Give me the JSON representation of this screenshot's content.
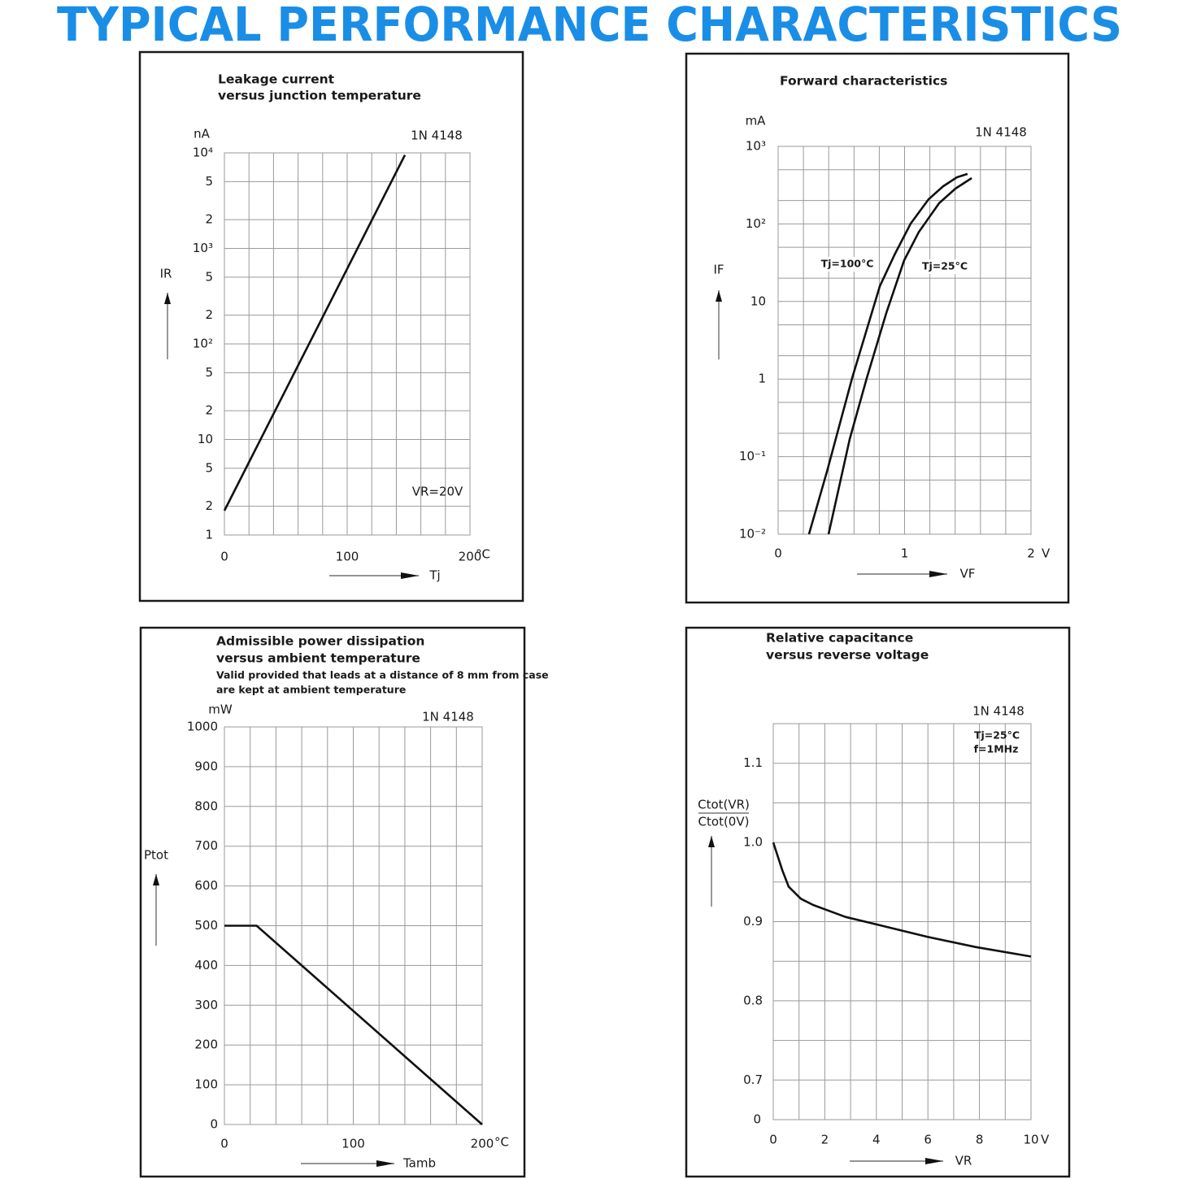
{
  "title": "TYPICAL PERFORMANCE CHARACTERISTICS",
  "chart_data": [
    {
      "type": "line",
      "title": [
        "Leakage current",
        "versus junction temperature"
      ],
      "device": "1N 4148",
      "yunit": "nA",
      "ylabel": "IR",
      "xlabel": "Tj",
      "xunit": "°C",
      "annotations": [
        "VR=20V"
      ],
      "ylog": true,
      "grid": true,
      "xlim": [
        0,
        200
      ],
      "ylim": [
        1,
        10000
      ],
      "xticks": [
        0,
        {
          "value": 20,
          "label": null
        },
        {
          "value": 40,
          "label": null
        },
        {
          "value": 60,
          "label": null
        },
        {
          "value": 80,
          "label": null
        },
        100,
        {
          "value": 120,
          "label": null
        },
        {
          "value": 140,
          "label": null
        },
        {
          "value": 160,
          "label": null
        },
        {
          "value": 180,
          "label": null
        },
        200
      ],
      "yticks": [
        1,
        2,
        5,
        10,
        {
          "value": 20,
          "label": "2"
        },
        {
          "value": 50,
          "label": "5"
        },
        {
          "value": 100,
          "label": "10²"
        },
        {
          "value": 200,
          "label": "2"
        },
        {
          "value": 500,
          "label": "5"
        },
        {
          "value": 1000,
          "label": "10³"
        },
        {
          "value": 2000,
          "label": "2"
        },
        {
          "value": 5000,
          "label": "5"
        },
        {
          "value": 10000,
          "label": "10⁴"
        }
      ],
      "series": [
        {
          "name": null,
          "color": "#111111",
          "x": [
            0,
            147
          ],
          "values": [
            1.8,
            9500
          ]
        }
      ]
    },
    {
      "type": "line",
      "title": [
        "Forward characteristics"
      ],
      "device": "1N 4148",
      "yunit": "mA",
      "ylabel": "IF",
      "xlabel": "VF",
      "xunit": "V",
      "ylog": true,
      "grid": true,
      "xlim": [
        0,
        2
      ],
      "ylim": [
        0.01,
        1000
      ],
      "xticks": [
        0,
        {
          "value": 0.2,
          "label": null
        },
        {
          "value": 0.4,
          "label": null
        },
        {
          "value": 0.6,
          "label": null
        },
        {
          "value": 0.8,
          "label": null
        },
        1,
        {
          "value": 1.2,
          "label": null
        },
        {
          "value": 1.4,
          "label": null
        },
        {
          "value": 1.6,
          "label": null
        },
        {
          "value": 1.8,
          "label": null
        },
        2
      ],
      "yticks": [
        {
          "value": 0.01,
          "label": "10⁻²"
        },
        {
          "value": 0.02,
          "label": null
        },
        {
          "value": 0.05,
          "label": null
        },
        {
          "value": 0.1,
          "label": "10⁻¹"
        },
        {
          "value": 0.2,
          "label": null
        },
        {
          "value": 0.5,
          "label": null
        },
        1,
        {
          "value": 2,
          "label": null
        },
        {
          "value": 5,
          "label": null
        },
        10,
        {
          "value": 20,
          "label": null
        },
        {
          "value": 50,
          "label": null
        },
        {
          "value": 100,
          "label": "10²"
        },
        {
          "value": 200,
          "label": null
        },
        {
          "value": 500,
          "label": null
        },
        {
          "value": 1000,
          "label": "10³"
        }
      ],
      "series": [
        {
          "name": "Tj=100°C",
          "color": "#111111",
          "x": [
            0.244,
            0.386,
            0.585,
            0.804,
            0.92,
            1.048,
            1.19,
            1.305,
            1.415,
            1.498
          ],
          "values": [
            0.01,
            0.064,
            1.03,
            15.7,
            40,
            101,
            208,
            306,
            400,
            441
          ]
        },
        {
          "name": "Tj=25°C",
          "color": "#111111",
          "x": [
            0.399,
            0.566,
            0.701,
            0.855,
            0.997,
            1.113,
            1.273,
            1.402,
            1.531
          ],
          "values": [
            0.01,
            0.168,
            1.03,
            7.1,
            34,
            79,
            185,
            285,
            390
          ]
        }
      ]
    },
    {
      "type": "line",
      "title": [
        "Admissible power dissipation",
        "versus ambient temperature"
      ],
      "notes": [
        "Valid provided that leads at a distance of 8 mm from case",
        "are kept at ambient temperature"
      ],
      "device": "1N 4148",
      "yunit": "mW",
      "ylabel": "Ptot",
      "xlabel": "Tamb",
      "xunit": "°C",
      "grid": true,
      "xlim": [
        0,
        200
      ],
      "ylim": [
        0,
        1000
      ],
      "xticks": [
        0,
        {
          "value": 20,
          "label": null
        },
        {
          "value": 40,
          "label": null
        },
        {
          "value": 60,
          "label": null
        },
        {
          "value": 80,
          "label": null
        },
        100,
        {
          "value": 120,
          "label": null
        },
        {
          "value": 140,
          "label": null
        },
        {
          "value": 160,
          "label": null
        },
        {
          "value": 180,
          "label": null
        },
        200
      ],
      "yticks": [
        0,
        100,
        200,
        300,
        400,
        500,
        600,
        700,
        800,
        900,
        1000
      ],
      "series": [
        {
          "name": null,
          "color": "#111111",
          "x": [
            0,
            25,
            200
          ],
          "values": [
            500,
            500,
            0
          ]
        }
      ]
    },
    {
      "type": "line",
      "title": [
        "Relative capacitance",
        "versus reverse voltage"
      ],
      "device": "1N 4148",
      "ylabel": [
        "Ctot(VR)",
        "Ctot(0V)"
      ],
      "xlabel": "VR",
      "xunit": "V",
      "annotations": [
        "Tj=25°C",
        "f=1MHz"
      ],
      "yaxis_break_label": "0",
      "grid": true,
      "xlim": [
        0,
        10
      ],
      "ylim": [
        0.65,
        1.15
      ],
      "xticks": [
        0,
        {
          "value": 1,
          "label": null
        },
        2,
        {
          "value": 3,
          "label": null
        },
        4,
        {
          "value": 5,
          "label": null
        },
        6,
        {
          "value": 7,
          "label": null
        },
        8,
        {
          "value": 9,
          "label": null
        },
        10
      ],
      "yticks": [
        0.7,
        {
          "value": 0.75,
          "label": null
        },
        0.8,
        {
          "value": 0.85,
          "label": null
        },
        0.9,
        {
          "value": 0.95,
          "label": null
        },
        {
          "value": 1.0,
          "label": "1.0"
        },
        {
          "value": 1.05,
          "label": null
        },
        1.1
      ],
      "series": [
        {
          "name": null,
          "color": "#111111",
          "x": [
            0,
            0.35,
            0.6,
            1.07,
            1.55,
            2.8,
            4.07,
            5.96,
            7.85,
            10
          ],
          "values": [
            1.0,
            0.965,
            0.944,
            0.929,
            0.921,
            0.906,
            0.896,
            0.881,
            0.868,
            0.856
          ]
        }
      ]
    }
  ]
}
